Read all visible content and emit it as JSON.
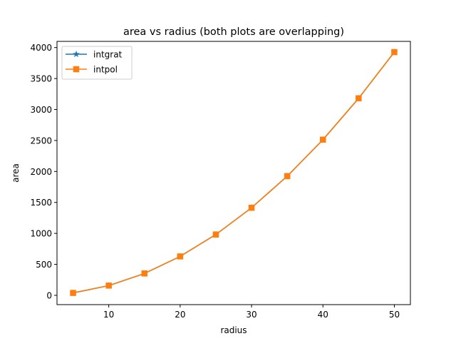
{
  "chart_data": {
    "type": "line",
    "title": "area vs radius (both plots are overlapping)",
    "xlabel": "radius",
    "ylabel": "area",
    "xlim": [
      2.75,
      52.25
    ],
    "ylim": [
      -150,
      4100
    ],
    "xticks": [
      10,
      20,
      30,
      40,
      50
    ],
    "yticks": [
      0,
      500,
      1000,
      1500,
      2000,
      2500,
      3000,
      3500,
      4000
    ],
    "grid": false,
    "legend_position": "top-left",
    "x": [
      5,
      10,
      15,
      20,
      25,
      30,
      35,
      40,
      45,
      50
    ],
    "series": [
      {
        "name": "intgrat",
        "color": "#1f77b4",
        "marker": "star",
        "values": [
          39,
          157,
          353,
          628,
          982,
          1414,
          1924,
          2513,
          3181,
          3927
        ]
      },
      {
        "name": "intpol",
        "color": "#ff7f0e",
        "marker": "square",
        "values": [
          39,
          157,
          353,
          628,
          982,
          1414,
          1924,
          2513,
          3181,
          3927
        ]
      }
    ]
  }
}
